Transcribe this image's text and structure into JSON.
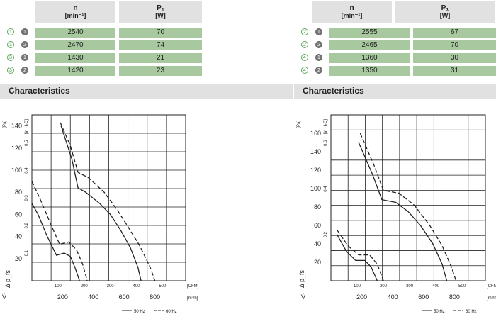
{
  "left_table": {
    "header_n": "n",
    "header_n_unit": "[min⁻¹]",
    "header_p": "P₁",
    "header_p_unit": "[W]",
    "rows": [
      {
        "curve": "1",
        "freq": "1",
        "n": "2540",
        "p": "70"
      },
      {
        "curve": "1",
        "freq": "2",
        "n": "2470",
        "p": "74"
      },
      {
        "curve": "3",
        "freq": "1",
        "n": "1430",
        "p": "21"
      },
      {
        "curve": "3",
        "freq": "2",
        "n": "1420",
        "p": "23"
      }
    ]
  },
  "right_table": {
    "header_n": "n",
    "header_n_unit": "[min⁻¹]",
    "header_p": "P₁",
    "header_p_unit": "[W]",
    "rows": [
      {
        "curve": "2",
        "freq": "1",
        "n": "2555",
        "p": "67"
      },
      {
        "curve": "2",
        "freq": "2",
        "n": "2465",
        "p": "70"
      },
      {
        "curve": "4",
        "freq": "1",
        "n": "1360",
        "p": "30"
      },
      {
        "curve": "4",
        "freq": "2",
        "n": "1350",
        "p": "31"
      }
    ]
  },
  "section_title_left": "Characteristics",
  "section_title_right": "Characteristics",
  "colors": {
    "accent_green": "#a8c9a0",
    "header_gray": "#e1e1e1",
    "curve": "#222222"
  },
  "chart_data": [
    {
      "type": "line",
      "y_unit_pa": "[Pa]",
      "y_unit_inh2o": "[in H₂O]",
      "y_ticks_pa": [
        "20",
        "40",
        "60",
        "80",
        "100",
        "120",
        "140"
      ],
      "y_ticks_inh2o": [
        "0,1",
        "0,2",
        "0,3",
        "0,4",
        "0,5"
      ],
      "x_ticks_cfm": [
        "100",
        "200",
        "300",
        "400",
        "500"
      ],
      "x_unit_cfm": "[CFM]",
      "x_ticks_m3h": [
        "200",
        "400",
        "600",
        "800"
      ],
      "x_unit_m3h": "[m³/h]",
      "ylabel": "Δ p_fs",
      "xlabel": "V̇",
      "legend": [
        "50 Hz",
        "60 Hz"
      ],
      "ylim": [
        0,
        150
      ],
      "xlim_m3h": [
        0,
        1000
      ],
      "series": [
        {
          "curve": "1",
          "freq": "50 Hz",
          "points": [
            [
              190,
              140
            ],
            [
              260,
              110
            ],
            [
              300,
              84
            ],
            [
              350,
              80
            ],
            [
              440,
              70
            ],
            [
              510,
              60
            ],
            [
              580,
              45
            ],
            [
              640,
              30
            ],
            [
              690,
              12
            ],
            [
              710,
              0
            ]
          ]
        },
        {
          "curve": "2",
          "freq": "60 Hz",
          "points": [
            [
              185,
              143
            ],
            [
              250,
              122
            ],
            [
              300,
              98
            ],
            [
              370,
              93
            ],
            [
              470,
              80
            ],
            [
              550,
              65
            ],
            [
              620,
              50
            ],
            [
              700,
              32
            ],
            [
              770,
              12
            ],
            [
              800,
              0
            ]
          ]
        },
        {
          "curve": "3",
          "freq": "50 Hz",
          "points": [
            [
              0,
              70
            ],
            [
              40,
              60
            ],
            [
              100,
              40
            ],
            [
              160,
              23
            ],
            [
              210,
              25
            ],
            [
              250,
              22
            ],
            [
              280,
              12
            ],
            [
              310,
              0
            ]
          ]
        },
        {
          "curve": "3",
          "freq": "60 Hz",
          "points": [
            [
              0,
              90
            ],
            [
              50,
              75
            ],
            [
              120,
              52
            ],
            [
              180,
              33
            ],
            [
              240,
              35
            ],
            [
              290,
              28
            ],
            [
              330,
              15
            ],
            [
              360,
              0
            ]
          ]
        }
      ]
    },
    {
      "type": "line",
      "y_unit_pa": "[Pa]",
      "y_unit_inh2o": "[in H₂O]",
      "y_ticks_pa": [
        "20",
        "40",
        "60",
        "80",
        "100",
        "120",
        "140",
        "160"
      ],
      "y_ticks_inh2o": [
        "0,2",
        "0,4",
        "0,6"
      ],
      "x_ticks_cfm": [
        "100",
        "200",
        "300",
        "400",
        "500"
      ],
      "x_unit_cfm": "[CFM]",
      "x_ticks_m3h": [
        "200",
        "400",
        "600",
        "800"
      ],
      "x_unit_m3h": "[m³/h]",
      "ylabel": "Δ p_fs",
      "xlabel": "V̇",
      "legend": [
        "50 Hz",
        "60 Hz"
      ],
      "ylim": [
        0,
        180
      ],
      "xlim_m3h": [
        0,
        1000
      ],
      "series": [
        {
          "curve": "2",
          "freq": "50 Hz",
          "points": [
            [
              180,
              150
            ],
            [
              270,
              115
            ],
            [
              330,
              88
            ],
            [
              420,
              85
            ],
            [
              500,
              75
            ],
            [
              580,
              60
            ],
            [
              660,
              40
            ],
            [
              720,
              18
            ],
            [
              750,
              0
            ]
          ]
        },
        {
          "curve": "2",
          "freq": "60 Hz",
          "points": [
            [
              190,
              160
            ],
            [
              280,
              125
            ],
            [
              340,
              98
            ],
            [
              440,
              95
            ],
            [
              540,
              82
            ],
            [
              640,
              60
            ],
            [
              720,
              38
            ],
            [
              780,
              15
            ],
            [
              810,
              0
            ]
          ]
        },
        {
          "curve": "4",
          "freq": "50 Hz",
          "points": [
            [
              40,
              50
            ],
            [
              100,
              32
            ],
            [
              160,
              22
            ],
            [
              220,
              22
            ],
            [
              260,
              15
            ],
            [
              300,
              0
            ]
          ]
        },
        {
          "curve": "4",
          "freq": "60 Hz",
          "points": [
            [
              40,
              55
            ],
            [
              110,
              38
            ],
            [
              180,
              28
            ],
            [
              250,
              28
            ],
            [
              300,
              18
            ],
            [
              340,
              0
            ]
          ]
        }
      ]
    }
  ]
}
